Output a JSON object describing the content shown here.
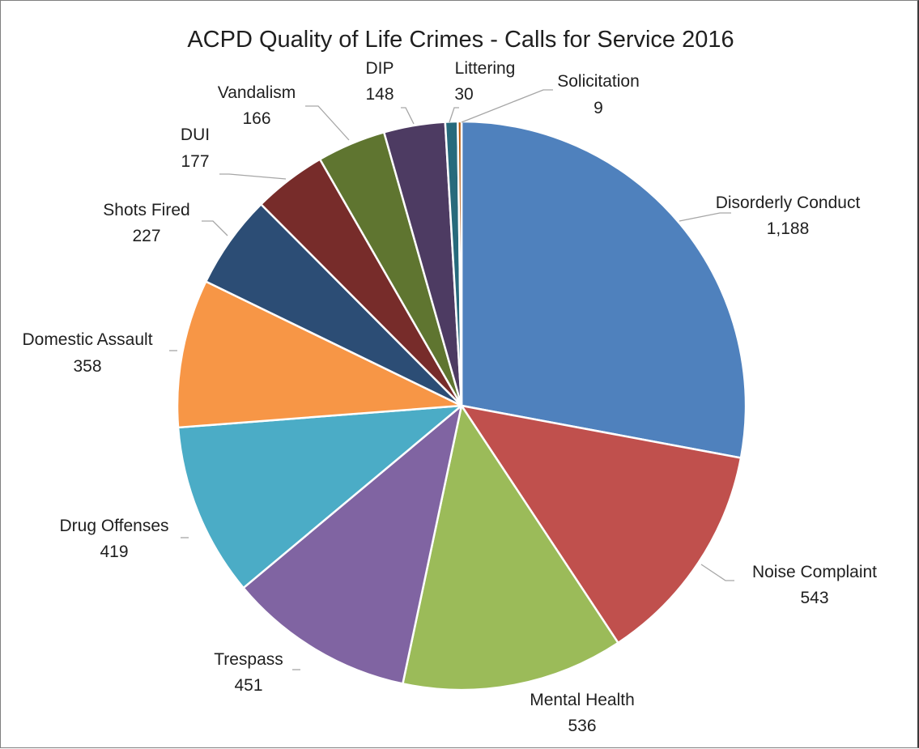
{
  "chart_data": {
    "type": "pie",
    "title": "ACPD Quality of Life Crimes - Calls for Service 2016",
    "slices": [
      {
        "label": "Disorderly Conduct",
        "value": 1188,
        "value_label": "1,188",
        "color": "#4f81bd"
      },
      {
        "label": "Noise Complaint",
        "value": 543,
        "value_label": "543",
        "color": "#c0504d"
      },
      {
        "label": "Mental Health",
        "value": 536,
        "value_label": "536",
        "color": "#9bbb59"
      },
      {
        "label": "Trespass",
        "value": 451,
        "value_label": "451",
        "color": "#8064a2"
      },
      {
        "label": "Drug Offenses",
        "value": 419,
        "value_label": "419",
        "color": "#4bacc6"
      },
      {
        "label": "Domestic Assault",
        "value": 358,
        "value_label": "358",
        "color": "#f79646"
      },
      {
        "label": "Shots Fired",
        "value": 227,
        "value_label": "227",
        "color": "#2c4d75"
      },
      {
        "label": "DUI",
        "value": 177,
        "value_label": "177",
        "color": "#772c2a"
      },
      {
        "label": "Vandalism",
        "value": 166,
        "value_label": "166",
        "color": "#5f7530"
      },
      {
        "label": "DIP",
        "value": 148,
        "value_label": "148",
        "color": "#4d3b62"
      },
      {
        "label": "Littering",
        "value": 30,
        "value_label": "30",
        "color": "#276a7c"
      },
      {
        "label": "Solicitation",
        "value": 9,
        "value_label": "9",
        "color": "#b65708"
      }
    ]
  }
}
